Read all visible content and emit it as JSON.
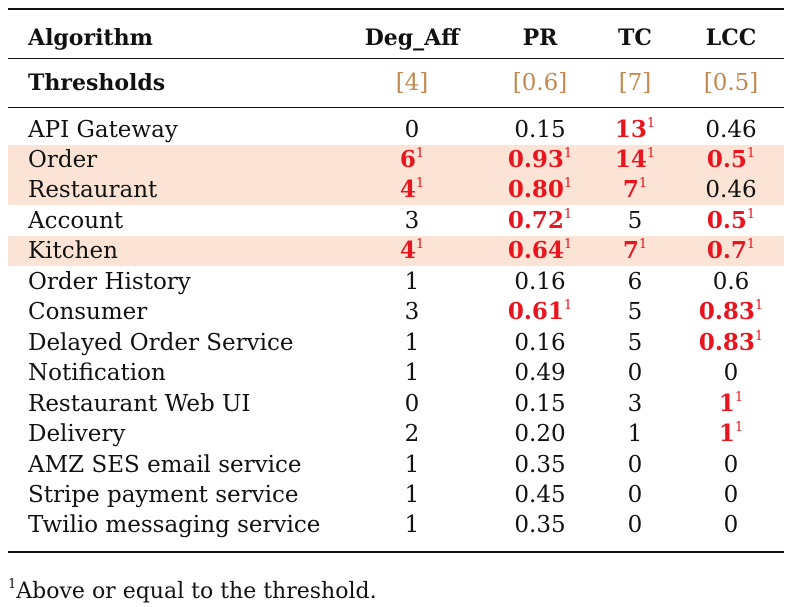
{
  "table": {
    "header": {
      "algorithm": "Algorithm",
      "deg_aff": "Deg_Aff",
      "pr": "PR",
      "tc": "TC",
      "lcc": "LCC"
    },
    "thresholds": {
      "label": "Thresholds",
      "deg_aff": "[4]",
      "pr": "[0.6]",
      "tc": "[7]",
      "lcc": "[0.5]"
    },
    "rows": [
      {
        "name": "API Gateway",
        "deg_aff": "0",
        "pr": "0.15",
        "tc": "13",
        "lcc": "0.46"
      },
      {
        "name": "Order",
        "deg_aff": "6",
        "pr": "0.93",
        "tc": "14",
        "lcc": "0.5"
      },
      {
        "name": "Restaurant",
        "deg_aff": "4",
        "pr": "0.80",
        "tc": "7",
        "lcc": "0.46"
      },
      {
        "name": "Account",
        "deg_aff": "3",
        "pr": "0.72",
        "tc": "5",
        "lcc": "0.5"
      },
      {
        "name": "Kitchen",
        "deg_aff": "4",
        "pr": "0.64",
        "tc": "7",
        "lcc": "0.7"
      },
      {
        "name": "Order History",
        "deg_aff": "1",
        "pr": "0.16",
        "tc": "6",
        "lcc": "0.6"
      },
      {
        "name": "Consumer",
        "deg_aff": "3",
        "pr": "0.61",
        "tc": "5",
        "lcc": "0.83"
      },
      {
        "name": "Delayed Order Service",
        "deg_aff": "1",
        "pr": "0.16",
        "tc": "5",
        "lcc": "0.83"
      },
      {
        "name": "Notification",
        "deg_aff": "1",
        "pr": "0.49",
        "tc": "0",
        "lcc": "0"
      },
      {
        "name": "Restaurant Web UI",
        "deg_aff": "0",
        "pr": "0.15",
        "tc": "3",
        "lcc": "1"
      },
      {
        "name": "Delivery",
        "deg_aff": "2",
        "pr": "0.20",
        "tc": "1",
        "lcc": "1"
      },
      {
        "name": "AMZ SES email service",
        "deg_aff": "1",
        "pr": "0.35",
        "tc": "0",
        "lcc": "0"
      },
      {
        "name": "Stripe payment service",
        "deg_aff": "1",
        "pr": "0.45",
        "tc": "0",
        "lcc": "0"
      },
      {
        "name": "Twilio messaging service",
        "deg_aff": "1",
        "pr": "0.35",
        "tc": "0",
        "lcc": "0"
      }
    ],
    "footnote_mark": "1"
  },
  "footnote": {
    "mark": "1",
    "text": "Above or equal to the threshold."
  },
  "colors": {
    "highlight_row": "#fbe4d5",
    "flag": "#e8141e",
    "threshold": "#c08a50"
  }
}
